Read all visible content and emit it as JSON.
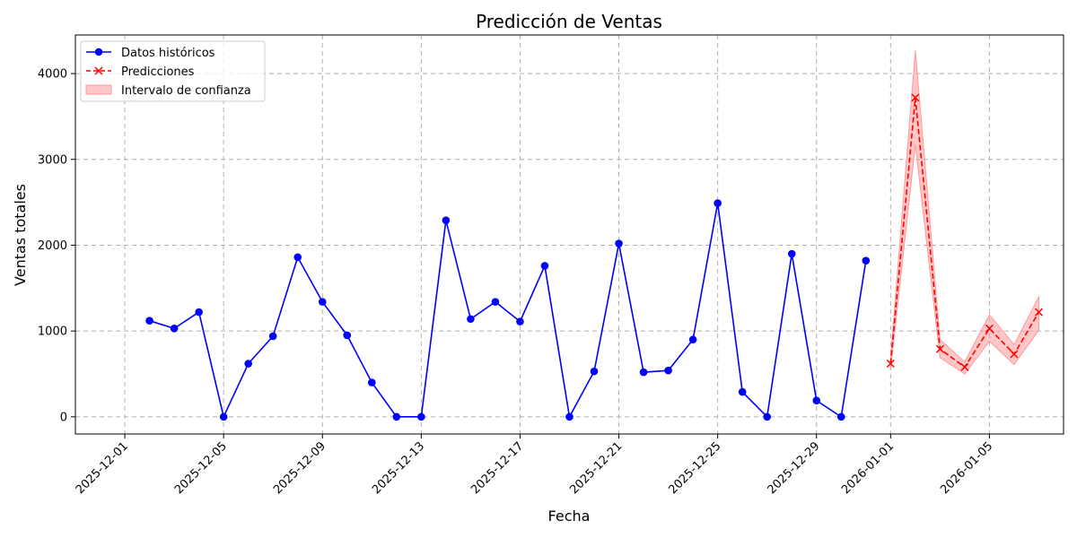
{
  "chart_data": {
    "type": "line",
    "title": "Predicción de Ventas",
    "xlabel": "Fecha",
    "ylabel": "Ventas totales",
    "ylim": [
      -200,
      4450
    ],
    "xlim": [
      "2025-11-29",
      "2026-01-08"
    ],
    "grid": true,
    "legend_position": "top-left",
    "y_ticks": [
      0,
      1000,
      2000,
      3000,
      4000
    ],
    "x_ticks": [
      "2025-12-01",
      "2025-12-05",
      "2025-12-09",
      "2025-12-13",
      "2025-12-17",
      "2025-12-21",
      "2025-12-25",
      "2025-12-29",
      "2026-01-01",
      "2026-01-05"
    ],
    "series": [
      {
        "name": "Datos históricos",
        "color": "#0000ff",
        "marker": "circle",
        "linestyle": "solid",
        "x": [
          "2025-12-02",
          "2025-12-03",
          "2025-12-04",
          "2025-12-05",
          "2025-12-06",
          "2025-12-07",
          "2025-12-08",
          "2025-12-09",
          "2025-12-10",
          "2025-12-11",
          "2025-12-12",
          "2025-12-13",
          "2025-12-14",
          "2025-12-15",
          "2025-12-16",
          "2025-12-17",
          "2025-12-18",
          "2025-12-19",
          "2025-12-20",
          "2025-12-21",
          "2025-12-22",
          "2025-12-23",
          "2025-12-24",
          "2025-12-25",
          "2025-12-26",
          "2025-12-27",
          "2025-12-28",
          "2025-12-29",
          "2025-12-30",
          "2025-12-31"
        ],
        "values": [
          1120,
          1030,
          1220,
          0,
          620,
          940,
          1860,
          1340,
          950,
          400,
          0,
          0,
          2290,
          1140,
          1340,
          1110,
          1760,
          0,
          530,
          2020,
          520,
          540,
          900,
          2490,
          290,
          0,
          1900,
          190,
          0,
          1820
        ]
      },
      {
        "name": "Predicciones",
        "color": "#ff0000",
        "marker": "x",
        "linestyle": "dashed",
        "x": [
          "2026-01-01",
          "2026-01-02",
          "2026-01-03",
          "2026-01-04",
          "2026-01-05",
          "2026-01-06",
          "2026-01-07"
        ],
        "values": [
          620,
          3720,
          790,
          580,
          1030,
          730,
          1220
        ]
      }
    ],
    "confidence_interval": {
      "name": "Intervalo de confianza",
      "color": "#ff9999",
      "x": [
        "2026-01-01",
        "2026-01-02",
        "2026-01-03",
        "2026-01-04",
        "2026-01-05",
        "2026-01-06",
        "2026-01-07"
      ],
      "lower": [
        560,
        3170,
        690,
        500,
        880,
        610,
        1010
      ],
      "upper": [
        690,
        4270,
        900,
        640,
        1190,
        840,
        1400
      ]
    }
  }
}
